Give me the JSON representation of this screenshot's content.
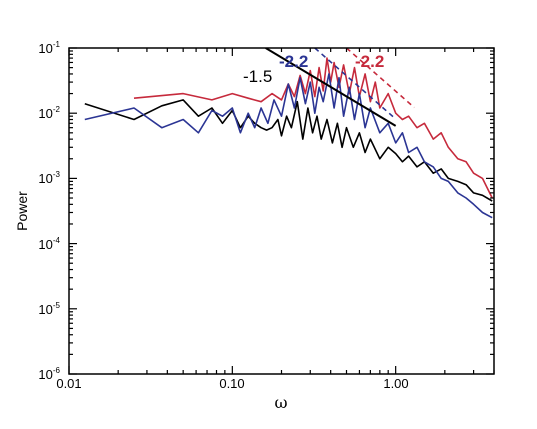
{
  "chart_data": {
    "type": "line",
    "xscale": "log",
    "yscale": "log",
    "xlim": [
      0.01,
      4.0
    ],
    "ylim": [
      1e-06,
      0.1
    ],
    "xlabel": "ω",
    "ylabel": "Power",
    "x_ticks": [
      "0.01",
      "0.10",
      "1.00"
    ],
    "y_ticks": [
      {
        "base": "10",
        "exp": "-6"
      },
      {
        "base": "10",
        "exp": "-5"
      },
      {
        "base": "10",
        "exp": "-4"
      },
      {
        "base": "10",
        "exp": "-3"
      },
      {
        "base": "10",
        "exp": "-2"
      },
      {
        "base": "10",
        "exp": "-1"
      }
    ],
    "grid": false,
    "series": [
      {
        "color": "#000000",
        "x": [
          0.0125,
          0.025,
          0.037,
          0.05,
          0.062,
          0.075,
          0.087,
          0.1,
          0.112,
          0.125,
          0.137,
          0.15,
          0.162,
          0.175,
          0.19,
          0.2,
          0.215,
          0.23,
          0.25,
          0.27,
          0.29,
          0.31,
          0.33,
          0.35,
          0.38,
          0.41,
          0.44,
          0.47,
          0.5,
          0.55,
          0.6,
          0.65,
          0.7,
          0.8,
          0.9,
          1.0,
          1.1,
          1.2,
          1.35,
          1.5,
          1.7,
          1.9,
          2.1,
          2.4,
          2.7,
          3.0,
          3.4,
          3.9
        ],
        "values": [
          0.014,
          0.008,
          0.013,
          0.016,
          0.009,
          0.012,
          0.007,
          0.011,
          0.006,
          0.009,
          0.007,
          0.006,
          0.0055,
          0.006,
          0.008,
          0.0045,
          0.009,
          0.006,
          0.015,
          0.004,
          0.012,
          0.005,
          0.009,
          0.004,
          0.008,
          0.0035,
          0.007,
          0.003,
          0.006,
          0.003,
          0.005,
          0.0025,
          0.004,
          0.002,
          0.003,
          0.0024,
          0.0018,
          0.0022,
          0.0015,
          0.0018,
          0.0012,
          0.0014,
          0.001,
          0.0009,
          0.0008,
          0.0006,
          0.00055,
          0.00045
        ]
      },
      {
        "color": "#c62a3c",
        "x": [
          0.025,
          0.05,
          0.075,
          0.1,
          0.125,
          0.15,
          0.175,
          0.2,
          0.22,
          0.24,
          0.26,
          0.28,
          0.3,
          0.32,
          0.34,
          0.36,
          0.38,
          0.4,
          0.42,
          0.45,
          0.48,
          0.52,
          0.56,
          0.6,
          0.65,
          0.7,
          0.75,
          0.8,
          0.9,
          1.0,
          1.1,
          1.2,
          1.35,
          1.5,
          1.7,
          1.9,
          2.1,
          2.4,
          2.7,
          3.0,
          3.4,
          3.9
        ],
        "values": [
          0.017,
          0.02,
          0.016,
          0.02,
          0.017,
          0.015,
          0.02,
          0.016,
          0.028,
          0.018,
          0.038,
          0.02,
          0.045,
          0.018,
          0.05,
          0.022,
          0.07,
          0.03,
          0.06,
          0.025,
          0.055,
          0.02,
          0.05,
          0.018,
          0.04,
          0.015,
          0.03,
          0.012,
          0.02,
          0.01,
          0.008,
          0.009,
          0.006,
          0.007,
          0.004,
          0.005,
          0.003,
          0.002,
          0.0018,
          0.0012,
          0.001,
          0.0005
        ]
      },
      {
        "color": "#2b3594",
        "x": [
          0.0125,
          0.025,
          0.037,
          0.05,
          0.062,
          0.075,
          0.087,
          0.1,
          0.112,
          0.125,
          0.137,
          0.15,
          0.165,
          0.18,
          0.2,
          0.22,
          0.24,
          0.26,
          0.28,
          0.3,
          0.32,
          0.34,
          0.36,
          0.39,
          0.42,
          0.45,
          0.48,
          0.52,
          0.56,
          0.6,
          0.65,
          0.7,
          0.8,
          0.9,
          1.0,
          1.1,
          1.2,
          1.35,
          1.5,
          1.7,
          1.9,
          2.1,
          2.4,
          2.7,
          3.0,
          3.4,
          3.9
        ],
        "values": [
          0.008,
          0.012,
          0.006,
          0.008,
          0.005,
          0.011,
          0.009,
          0.012,
          0.005,
          0.01,
          0.006,
          0.012,
          0.007,
          0.016,
          0.009,
          0.028,
          0.012,
          0.035,
          0.014,
          0.03,
          0.01,
          0.025,
          0.015,
          0.04,
          0.012,
          0.035,
          0.009,
          0.025,
          0.008,
          0.02,
          0.006,
          0.012,
          0.005,
          0.007,
          0.0035,
          0.005,
          0.0025,
          0.003,
          0.0018,
          0.0015,
          0.001,
          0.0009,
          0.0006,
          0.0005,
          0.0004,
          0.0003,
          0.00025
        ]
      }
    ],
    "power_laws": [
      {
        "label": "-1.5",
        "color": "#000000",
        "slope": -1.5,
        "x0": 0.16,
        "y0": 0.1,
        "x_end": 1.0
      },
      {
        "label": "-2.2",
        "color": "#2b3594",
        "slope": -2.2,
        "x0": 0.32,
        "y0": 0.1,
        "x_end": 1.0
      },
      {
        "label": "-2.2",
        "color": "#c62a3c",
        "slope": -2.2,
        "x0": 0.5,
        "y0": 0.1,
        "x_end": 1.3
      }
    ]
  }
}
